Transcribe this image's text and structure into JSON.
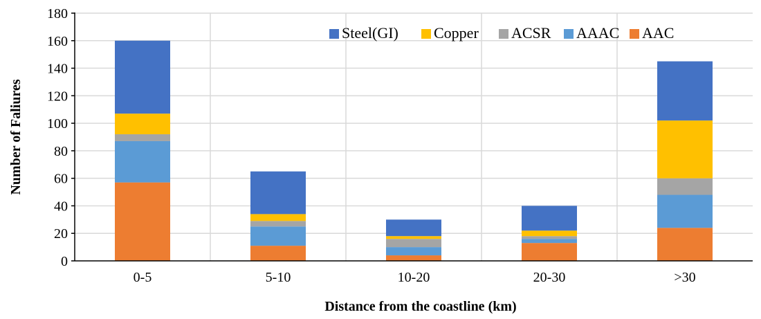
{
  "chart_data": {
    "type": "bar",
    "stacked": true,
    "title": "",
    "xlabel": "Distance from the coastline (km)",
    "ylabel": "Number of Faliures",
    "categories": [
      "0-5",
      "5-10",
      "10-20",
      "20-30",
      ">30"
    ],
    "ylim": [
      0,
      180
    ],
    "yticks": [
      0,
      20,
      40,
      60,
      80,
      100,
      120,
      140,
      160,
      180
    ],
    "grid": true,
    "legend_position": "top-right",
    "series": [
      {
        "name": "AAC",
        "color": "#ED7D31",
        "values": [
          57,
          11,
          4,
          13,
          24
        ]
      },
      {
        "name": "AAAC",
        "color": "#5B9BD5",
        "values": [
          30,
          14,
          6,
          3,
          24
        ]
      },
      {
        "name": "ACSR",
        "color": "#A5A5A5",
        "values": [
          5,
          4,
          6,
          2,
          12
        ]
      },
      {
        "name": "Copper",
        "color": "#FFC000",
        "values": [
          15,
          5,
          2,
          4,
          42
        ]
      },
      {
        "name": "Steel(GI)",
        "color": "#4472C4",
        "values": [
          53,
          31,
          12,
          18,
          43
        ]
      }
    ],
    "legend_order": [
      "Steel(GI)",
      "Copper",
      "ACSR",
      "AAAC",
      "AAC"
    ]
  }
}
